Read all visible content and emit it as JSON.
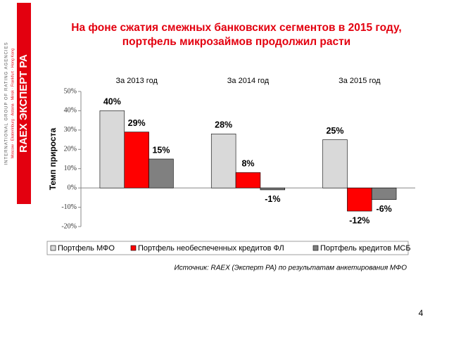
{
  "logo": {
    "brand": "RAEX",
    "name": "ЭКСПЕРТ РА",
    "tagline": "INTERNATIONAL GROUP OF RATING AGENCIES",
    "cities": "Moscow · Ekaterinburg · Astana · Minsk · Frankfurt · Hong Kong"
  },
  "chart_data": {
    "type": "bar",
    "title": [
      "На фоне сжатия смежных банковских сегментов в 2015 году,",
      "портфель микрозаймов продолжил расти"
    ],
    "categories": [
      "За 2013 год",
      "За 2014 год",
      "За 2015 год"
    ],
    "y_label": "Темп прироста",
    "series": [
      {
        "name": "Портфель МФО",
        "color": "#d9d9d9",
        "values": [
          40,
          28,
          25
        ],
        "value_labels": [
          "40%",
          "28%",
          "25%"
        ]
      },
      {
        "name": "Портфель необеспеченных  кредитов ФЛ",
        "color": "#ff0000",
        "values": [
          29,
          8,
          -12
        ],
        "value_labels": [
          "29%",
          "8%",
          "-12%"
        ]
      },
      {
        "name": "Портфель кредитов МСБ",
        "color": "#808080",
        "values": [
          15,
          -1,
          -6
        ],
        "value_labels": [
          "15%",
          "-1%",
          "-6%"
        ]
      }
    ],
    "ylim": [
      -20,
      50
    ],
    "yticks": [
      {
        "value": -20,
        "label": "-20%"
      },
      {
        "value": -10,
        "label": "-10%"
      },
      {
        "value": 0,
        "label": "0%"
      },
      {
        "value": 10,
        "label": "10%"
      },
      {
        "value": 20,
        "label": "20%"
      },
      {
        "value": 30,
        "label": "30%"
      },
      {
        "value": 40,
        "label": "40%"
      },
      {
        "value": 50,
        "label": "50%"
      }
    ],
    "grid": false,
    "legend": "bottom",
    "source": "Источник: RAEX (Эксперт РА) по результатам анкетирования МФО",
    "page_number": "4"
  }
}
